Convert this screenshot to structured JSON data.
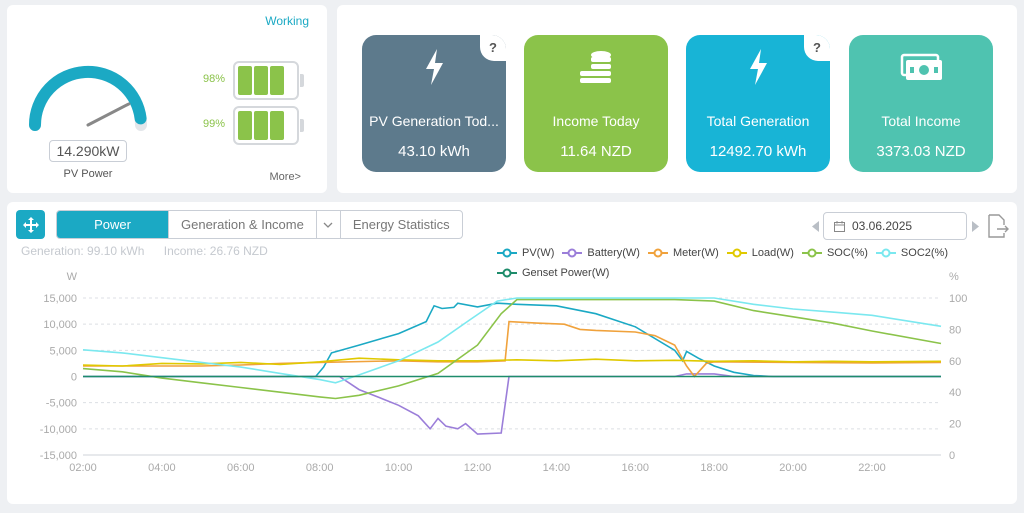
{
  "status": {
    "working_label": "Working",
    "gauge_value": "14.290kW",
    "gauge_label": "PV Power",
    "gauge_fill_fraction": 0.96,
    "batteries": [
      {
        "pct": "98%",
        "cells": 3
      },
      {
        "pct": "99%",
        "cells": 3
      }
    ],
    "more_label": "More>"
  },
  "cards": [
    {
      "title": "PV Generation Tod...",
      "value": "43.10 kWh",
      "icon": "bolt-icon",
      "color": "#5d7a8c",
      "help": "?"
    },
    {
      "title": "Income Today",
      "value": "11.64 NZD",
      "icon": "coins-icon",
      "color": "#8bc34a",
      "help": ""
    },
    {
      "title": "Total Generation",
      "value": "12492.70 kWh",
      "icon": "bolt-icon",
      "color": "#18b4d6",
      "help": "?"
    },
    {
      "title": "Total Income",
      "value": "3373.03 NZD",
      "icon": "money-icon",
      "color": "#4fc3b0",
      "help": ""
    }
  ],
  "toolbar": {
    "tabs": [
      "Power",
      "Generation & Income",
      "Energy Statistics"
    ],
    "active_tab": "Power",
    "date": "03.06.2025"
  },
  "summary": {
    "generation": "Generation: 99.10 kWh",
    "income": "Income: 26.76 NZD"
  },
  "chart_data": {
    "type": "line",
    "left_unit": "W",
    "right_unit": "%",
    "x_ticks": [
      "02:00",
      "04:00",
      "06:00",
      "08:00",
      "10:00",
      "12:00",
      "14:00",
      "16:00",
      "18:00",
      "20:00",
      "22:00"
    ],
    "y_ticks_left": [
      "15,000",
      "10,000",
      "5,000",
      "0",
      "-5,000",
      "-10,000",
      "-15,000"
    ],
    "y_ticks_right": [
      "100",
      "80",
      "60",
      "40",
      "20",
      "0"
    ],
    "ylim_left": [
      -15000,
      15000
    ],
    "ylim_right": [
      0,
      100
    ],
    "xlim_hours": [
      2,
      23.75
    ],
    "grid": true,
    "legend_position": "top-right",
    "series": [
      {
        "name": "PV(W)",
        "color": "#1ba9c4",
        "axis": "left",
        "points": [
          [
            2,
            0
          ],
          [
            7.9,
            0
          ],
          [
            8.1,
            1800
          ],
          [
            8.3,
            4500
          ],
          [
            9,
            6000
          ],
          [
            10,
            8200
          ],
          [
            10.7,
            10500
          ],
          [
            10.8,
            12000
          ],
          [
            10.9,
            13500
          ],
          [
            11.1,
            13000
          ],
          [
            11.4,
            13200
          ],
          [
            11.5,
            14000
          ],
          [
            12,
            13300
          ],
          [
            12.5,
            14000
          ],
          [
            13,
            13800
          ],
          [
            14,
            13500
          ],
          [
            15,
            12000
          ],
          [
            16,
            9500
          ],
          [
            17,
            5000
          ],
          [
            17.2,
            3000
          ],
          [
            17.3,
            4800
          ],
          [
            17.6,
            3500
          ],
          [
            18,
            2000
          ],
          [
            18.5,
            800
          ],
          [
            19,
            200
          ],
          [
            19.5,
            0
          ],
          [
            23.75,
            0
          ]
        ]
      },
      {
        "name": "Battery(W)",
        "color": "#9b7ed9",
        "axis": "left",
        "points": [
          [
            2,
            0
          ],
          [
            8.5,
            0
          ],
          [
            9,
            -2500
          ],
          [
            9.5,
            -4000
          ],
          [
            10,
            -5500
          ],
          [
            10.5,
            -7500
          ],
          [
            10.8,
            -10000
          ],
          [
            11,
            -8000
          ],
          [
            11.2,
            -9500
          ],
          [
            11.5,
            -10000
          ],
          [
            11.7,
            -9000
          ],
          [
            12,
            -11000
          ],
          [
            12.6,
            -10800
          ],
          [
            12.8,
            0
          ],
          [
            17,
            0
          ],
          [
            17.3,
            500
          ],
          [
            18,
            500
          ],
          [
            18.5,
            0
          ],
          [
            23.75,
            0
          ]
        ]
      },
      {
        "name": "Meter(W)",
        "color": "#f0a23c",
        "axis": "left",
        "points": [
          [
            2,
            2000
          ],
          [
            5,
            2000
          ],
          [
            6,
            2200
          ],
          [
            7,
            2500
          ],
          [
            8,
            2700
          ],
          [
            10,
            3000
          ],
          [
            11,
            2800
          ],
          [
            12,
            2800
          ],
          [
            12.7,
            3000
          ],
          [
            12.8,
            10500
          ],
          [
            13.5,
            10200
          ],
          [
            14.2,
            10000
          ],
          [
            14.6,
            9000
          ],
          [
            15,
            8800
          ],
          [
            16,
            8500
          ],
          [
            16.5,
            7800
          ],
          [
            17,
            6000
          ],
          [
            17.3,
            2000
          ],
          [
            17.5,
            0
          ],
          [
            17.8,
            2500
          ],
          [
            18,
            2800
          ],
          [
            20,
            2700
          ],
          [
            22,
            2600
          ],
          [
            23.75,
            2700
          ]
        ]
      },
      {
        "name": "Load(W)",
        "color": "#e0c900",
        "axis": "left",
        "points": [
          [
            2,
            2200
          ],
          [
            3,
            2000
          ],
          [
            4,
            2500
          ],
          [
            5,
            2400
          ],
          [
            6,
            2700
          ],
          [
            7,
            2300
          ],
          [
            8,
            2800
          ],
          [
            9,
            3500
          ],
          [
            10,
            3200
          ],
          [
            11,
            3000
          ],
          [
            12,
            3000
          ],
          [
            13,
            3200
          ],
          [
            14,
            3000
          ],
          [
            15,
            3300
          ],
          [
            16,
            3000
          ],
          [
            17,
            3100
          ],
          [
            18,
            2900
          ],
          [
            19,
            3000
          ],
          [
            20,
            2800
          ],
          [
            21,
            2900
          ],
          [
            22,
            2800
          ],
          [
            23.75,
            2900
          ]
        ]
      },
      {
        "name": "SOC(%)",
        "color": "#8bc34a",
        "axis": "right",
        "points": [
          [
            2,
            55
          ],
          [
            3,
            53
          ],
          [
            4,
            49
          ],
          [
            5,
            46
          ],
          [
            6,
            43
          ],
          [
            7,
            40
          ],
          [
            8,
            37
          ],
          [
            8.4,
            36
          ],
          [
            9,
            38
          ],
          [
            10,
            44
          ],
          [
            11,
            52
          ],
          [
            12,
            70
          ],
          [
            12.6,
            90
          ],
          [
            13,
            99
          ],
          [
            17,
            99
          ],
          [
            18,
            98
          ],
          [
            19,
            92
          ],
          [
            20,
            88
          ],
          [
            21,
            84
          ],
          [
            22,
            79
          ],
          [
            23.75,
            71
          ]
        ]
      },
      {
        "name": "SOC2(%)",
        "color": "#7be8ef",
        "axis": "right",
        "points": [
          [
            2,
            67
          ],
          [
            3,
            65
          ],
          [
            4,
            62
          ],
          [
            5,
            59
          ],
          [
            6,
            56
          ],
          [
            7,
            52
          ],
          [
            8,
            48
          ],
          [
            8.4,
            46
          ],
          [
            9,
            51
          ],
          [
            10,
            60
          ],
          [
            11,
            72
          ],
          [
            11.8,
            86
          ],
          [
            12.5,
            98
          ],
          [
            13,
            100
          ],
          [
            18,
            100
          ],
          [
            19,
            96
          ],
          [
            20,
            93
          ],
          [
            21,
            91
          ],
          [
            22,
            89
          ],
          [
            23.75,
            82
          ]
        ]
      },
      {
        "name": "Genset Power(W)",
        "color": "#1e8c6b",
        "axis": "left",
        "points": [
          [
            2,
            0
          ],
          [
            23.75,
            0
          ]
        ]
      }
    ]
  }
}
